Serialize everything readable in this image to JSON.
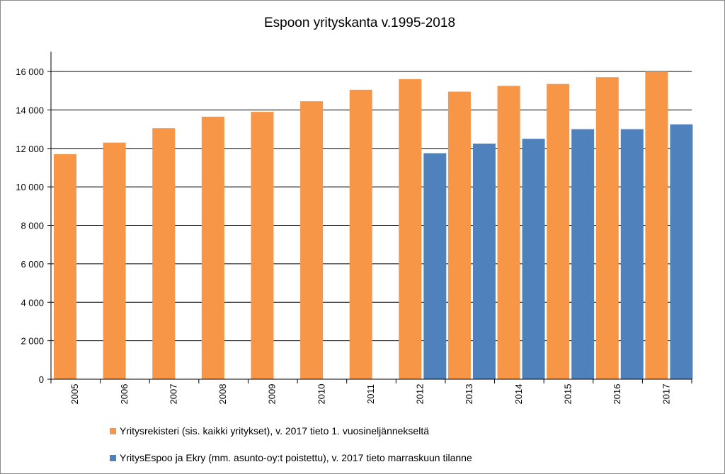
{
  "chart_data": {
    "type": "bar",
    "title": "Espoon yrityskanta v.1995-2018",
    "xlabel": "",
    "ylabel": "",
    "categories": [
      "2005",
      "2006",
      "2007",
      "2008",
      "2009",
      "2010",
      "2011",
      "2012",
      "2013",
      "2014",
      "2015",
      "2016",
      "2017"
    ],
    "ylim": [
      0,
      16000
    ],
    "y_ticks": [
      0,
      2000,
      4000,
      6000,
      8000,
      10000,
      12000,
      14000,
      16000
    ],
    "y_tick_labels": [
      "0",
      "2 000",
      "4 000",
      "6 000",
      "8 000",
      "10 000",
      "12 000",
      "14 000",
      "16 000"
    ],
    "grid": true,
    "legend_position": "bottom",
    "series": [
      {
        "name": "Yritysrekisteri (sis. kaikki yritykset), v. 2017 tieto 1. vuosineljännekseltä",
        "color": "#f79646",
        "values": [
          11700,
          12300,
          13050,
          13650,
          13900,
          14450,
          15050,
          15600,
          14950,
          15250,
          15350,
          15700,
          16000
        ]
      },
      {
        "name": "YritysEspoo ja Ekry (mm. asunto-oy:t poistettu), v. 2017 tieto marraskuun tilanne",
        "color": "#4f81bd",
        "values": [
          null,
          null,
          null,
          null,
          null,
          null,
          null,
          11750,
          12250,
          12500,
          13000,
          13000,
          13250
        ]
      }
    ]
  }
}
